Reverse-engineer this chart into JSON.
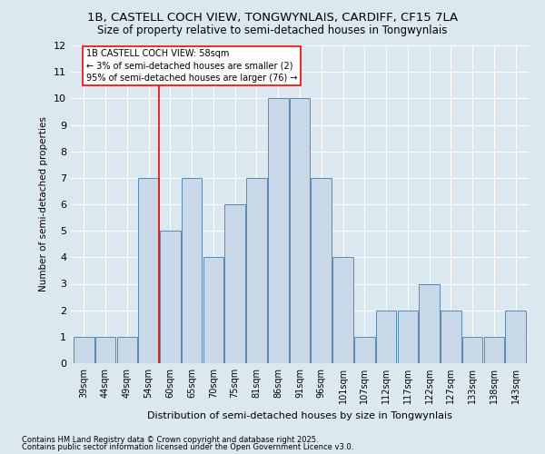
{
  "title1": "1B, CASTELL COCH VIEW, TONGWYNLAIS, CARDIFF, CF15 7LA",
  "title2": "Size of property relative to semi-detached houses in Tongwynlais",
  "xlabel": "Distribution of semi-detached houses by size in Tongwynlais",
  "ylabel": "Number of semi-detached properties",
  "categories": [
    "39sqm",
    "44sqm",
    "49sqm",
    "54sqm",
    "60sqm",
    "65sqm",
    "70sqm",
    "75sqm",
    "81sqm",
    "86sqm",
    "91sqm",
    "96sqm",
    "101sqm",
    "107sqm",
    "112sqm",
    "117sqm",
    "122sqm",
    "127sqm",
    "133sqm",
    "138sqm",
    "143sqm"
  ],
  "values": [
    1,
    1,
    1,
    7,
    5,
    7,
    4,
    6,
    7,
    10,
    10,
    7,
    4,
    1,
    2,
    2,
    3,
    2,
    1,
    1,
    2
  ],
  "bar_color": "#c8d8e8",
  "bar_edge_color": "#5a8ab0",
  "red_line_x": 3.5,
  "annotation_text": "1B CASTELL COCH VIEW: 58sqm\n← 3% of semi-detached houses are smaller (2)\n95% of semi-detached houses are larger (76) →",
  "ylim": [
    0,
    12
  ],
  "yticks": [
    0,
    1,
    2,
    3,
    4,
    5,
    6,
    7,
    8,
    9,
    10,
    11,
    12
  ],
  "footer1": "Contains HM Land Registry data © Crown copyright and database right 2025.",
  "footer2": "Contains public sector information licensed under the Open Government Licence v3.0.",
  "fig_bg_color": "#dce8f0",
  "plot_bg_color": "#dce8f0"
}
